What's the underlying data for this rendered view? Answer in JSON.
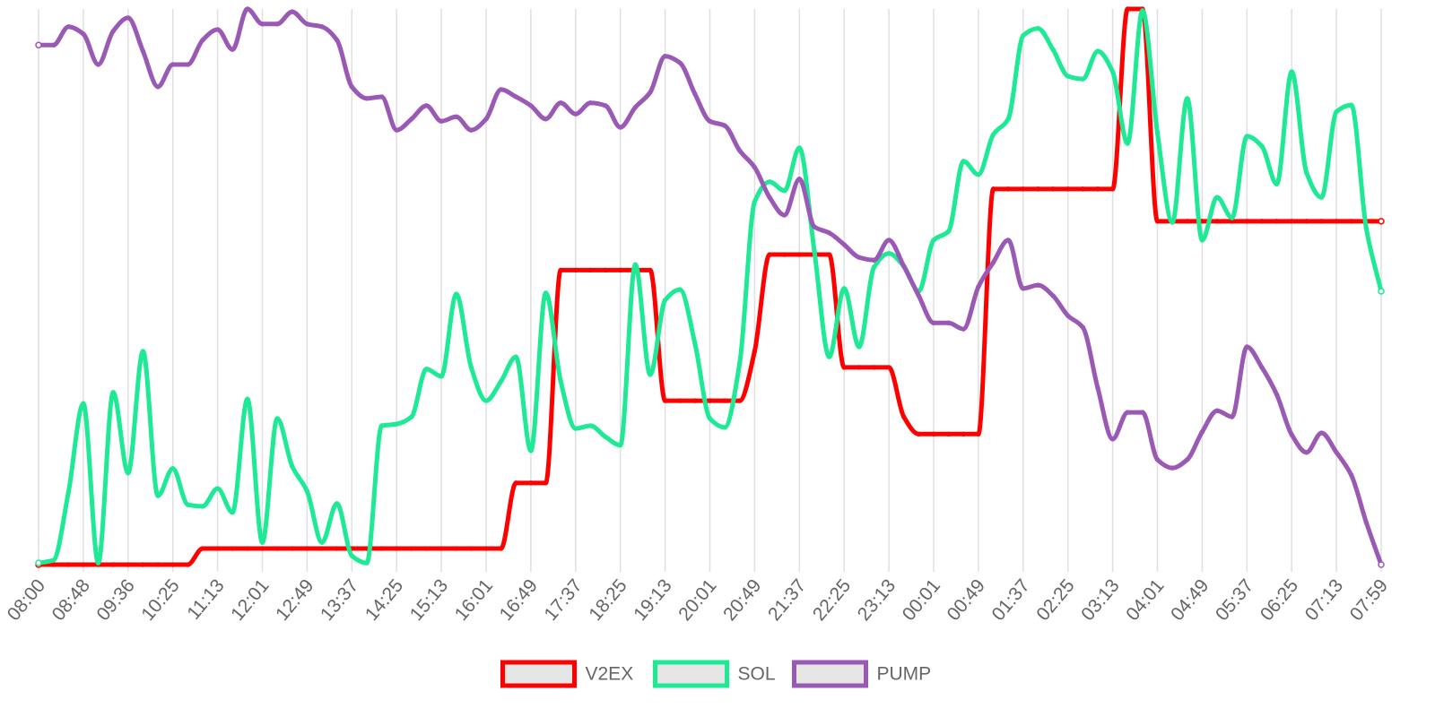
{
  "chart_data": {
    "type": "line",
    "categories": [
      "08:00",
      null,
      null,
      "08:48",
      null,
      null,
      "09:36",
      null,
      null,
      "10:25",
      null,
      null,
      "11:13",
      null,
      null,
      "12:01",
      null,
      null,
      "12:49",
      null,
      null,
      "13:37",
      null,
      null,
      "14:25",
      null,
      null,
      "15:13",
      null,
      null,
      "16:01",
      null,
      null,
      "16:49",
      null,
      null,
      "17:37",
      null,
      null,
      "18:25",
      null,
      null,
      "19:13",
      null,
      null,
      "20:01",
      null,
      null,
      "20:49",
      null,
      null,
      "21:37",
      null,
      null,
      "22:25",
      null,
      null,
      "23:13",
      null,
      null,
      "00:01",
      null,
      null,
      "00:49",
      null,
      null,
      "01:37",
      null,
      null,
      "02:25",
      null,
      null,
      "03:13",
      null,
      null,
      "04:01",
      null,
      null,
      "04:49",
      null,
      null,
      "05:37",
      null,
      null,
      "06:25",
      null,
      null,
      "07:13",
      null,
      null,
      "07:59"
    ],
    "ylim": [
      0,
      100
    ],
    "grid": true,
    "legend": "bottom",
    "series": [
      {
        "name": "V2EX",
        "color": "#ff0000",
        "values": [
          0,
          0,
          0,
          0,
          0,
          0,
          0,
          0,
          0,
          0,
          0,
          2.9,
          2.9,
          2.9,
          2.9,
          2.9,
          2.9,
          2.9,
          2.9,
          2.9,
          2.9,
          2.9,
          2.9,
          2.9,
          2.9,
          2.9,
          2.9,
          2.9,
          2.9,
          2.9,
          2.9,
          2.9,
          14.7,
          14.7,
          14.7,
          53,
          53,
          53,
          53,
          53,
          53,
          53,
          29.5,
          29.5,
          29.5,
          29.5,
          29.5,
          29.5,
          38.4,
          55.8,
          55.8,
          55.8,
          55.8,
          55.8,
          35.5,
          35.5,
          35.5,
          35.5,
          26.6,
          23.5,
          23.5,
          23.5,
          23.5,
          23.5,
          67.6,
          67.6,
          67.6,
          67.6,
          67.6,
          67.6,
          67.6,
          67.6,
          67.6,
          100,
          100,
          61.8,
          61.8,
          61.8,
          61.8,
          61.8,
          61.8,
          61.8,
          61.8,
          61.8,
          61.8,
          61.8,
          61.8,
          61.8,
          61.8,
          61.8,
          61.8
        ]
      },
      {
        "name": "SOL",
        "color": "#1ee995",
        "values": [
          0.3,
          0.8,
          13,
          29,
          0.3,
          31,
          16.5,
          38.4,
          12.4,
          17.3,
          10.8,
          10.5,
          13.7,
          9.4,
          29.8,
          4,
          26.3,
          17.7,
          13.2,
          4,
          11,
          1.6,
          0.3,
          25,
          25.3,
          26.6,
          35.2,
          33.9,
          48.7,
          35.5,
          29.5,
          33,
          37.4,
          20.5,
          48.9,
          33,
          24.5,
          25,
          23,
          21.5,
          54,
          34.2,
          47.6,
          49.5,
          39.8,
          26.3,
          24.7,
          36.3,
          65.3,
          68.9,
          67.3,
          75,
          56.5,
          37.4,
          49.7,
          39.2,
          53.5,
          56,
          53.7,
          49.2,
          58.4,
          60,
          72.6,
          70.2,
          77.4,
          80.2,
          95.2,
          96.5,
          92.7,
          87.9,
          87.4,
          92.4,
          88.7,
          75.8,
          99.7,
          77.7,
          61.6,
          83.9,
          58.4,
          66.1,
          62.4,
          77.1,
          75.3,
          68.5,
          88.7,
          70.5,
          66.1,
          81.5,
          82.7,
          60.5,
          49.2
        ]
      },
      {
        "name": "PUMP",
        "color": "#9b59b6",
        "values": [
          93.5,
          93.5,
          96.8,
          95.5,
          90,
          96,
          98.4,
          92.4,
          86,
          90,
          90,
          94.4,
          96.3,
          92.7,
          100,
          97.3,
          97.3,
          99.5,
          97.3,
          96.8,
          94.4,
          86,
          83.9,
          84.2,
          78.2,
          80.2,
          82.6,
          79.8,
          80.6,
          78.2,
          80.2,
          85.5,
          84.2,
          82.6,
          80.2,
          83.1,
          81.1,
          83.1,
          82.6,
          78.7,
          82.3,
          85,
          91.5,
          90.3,
          84.7,
          79.8,
          79,
          74.5,
          71.5,
          66.1,
          62.9,
          69.4,
          60.8,
          59.7,
          57.6,
          55.3,
          54.8,
          58.4,
          53.7,
          48.4,
          43.5,
          43.5,
          42.4,
          50,
          54.4,
          58.4,
          49.7,
          50.3,
          48.4,
          44.8,
          42.7,
          31.8,
          22.6,
          27.4,
          27.4,
          18.9,
          17.4,
          18.9,
          23.9,
          27.7,
          26.6,
          39.2,
          35.5,
          30.6,
          23.4,
          20.2,
          23.7,
          20.2,
          16.1,
          7.6,
          0
        ]
      }
    ]
  }
}
